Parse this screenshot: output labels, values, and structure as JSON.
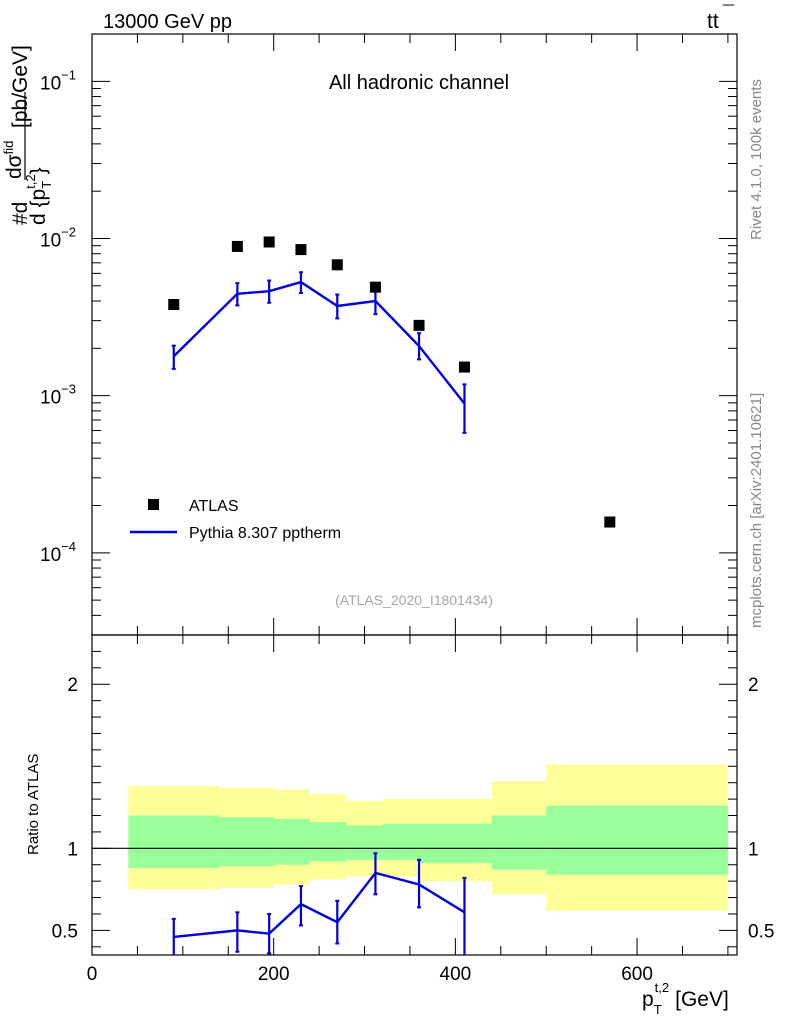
{
  "header": {
    "energy_label": "13000 GeV pp",
    "process_main": "tt",
    "process_bar": "¯"
  },
  "side_labels": {
    "rivet": "Rivet 4.1.0,  100k events",
    "source": "mcplots.cern.ch [arXiv:2401.10621]"
  },
  "chart_data": [
    {
      "type": "scatter",
      "title": "All hadronic channel",
      "watermark": "(ATLAS_2020_I1801434)",
      "ylabel": {
        "prefix": "#d",
        "num_main": "dσ",
        "num_sup": "fid",
        "den_main": "d {p",
        "den_sub": "T",
        "den_sup": "t,2",
        "den_close": "}",
        "unit": "[pb/GeV]"
      },
      "yscale": "log",
      "xlim": [
        0,
        710
      ],
      "ylim": [
        3e-05,
        0.2
      ],
      "y_ticks": [
        {
          "value": 0.1,
          "base": "10",
          "exp": "−1"
        },
        {
          "value": 0.01,
          "base": "10",
          "exp": "−2"
        },
        {
          "value": 0.001,
          "base": "10",
          "exp": "−3"
        },
        {
          "value": 0.0001,
          "base": "10",
          "exp": "−4"
        }
      ],
      "legend": {
        "position": "bottom-left",
        "data_label": "ATLAS",
        "mc_label": "Pythia 8.307 pptherm"
      },
      "series": [
        {
          "name": "ATLAS",
          "color": "#000000",
          "x": [
            90,
            160,
            195,
            230,
            270,
            312,
            360,
            410,
            570
          ],
          "y": [
            0.0038,
            0.0089,
            0.0095,
            0.0085,
            0.0068,
            0.0049,
            0.0028,
            0.00152,
            0.000157
          ]
        },
        {
          "name": "Pythia 8.307 pptherm",
          "color": "#0000dd",
          "x": [
            90,
            160,
            195,
            230,
            270,
            312,
            360,
            410
          ],
          "y": [
            0.00178,
            0.00445,
            0.00462,
            0.00528,
            0.00372,
            0.004,
            0.00207,
            0.00089
          ],
          "y_low": [
            0.00148,
            0.00375,
            0.0039,
            0.0045,
            0.0031,
            0.0033,
            0.0017,
            0.00058
          ],
          "y_high": [
            0.00208,
            0.0052,
            0.0054,
            0.0061,
            0.0044,
            0.0047,
            0.0025,
            0.00118
          ]
        }
      ]
    },
    {
      "type": "line",
      "ylabel": "Ratio to ATLAS",
      "xlabel": {
        "main": "p",
        "sub": "T",
        "sup": "t,2",
        "unit": "[GeV]"
      },
      "xlim": [
        0,
        710
      ],
      "ylim": [
        0.35,
        2.3
      ],
      "x_ticks": [
        0,
        200,
        400,
        600
      ],
      "y_ticks_left": [
        "2",
        "1",
        "0.5"
      ],
      "y_ticks_right": [
        "2",
        "1",
        "0.5"
      ],
      "y_tick_values": [
        2,
        1,
        0.5
      ],
      "reference_line": 1,
      "bands": {
        "edges": [
          40,
          140,
          200,
          240,
          280,
          320,
          360,
          440,
          500,
          700
        ],
        "yellow_low": [
          0.75,
          0.76,
          0.78,
          0.81,
          0.83,
          0.83,
          0.8,
          0.72,
          0.62
        ],
        "yellow_high": [
          1.38,
          1.37,
          1.36,
          1.33,
          1.29,
          1.3,
          1.3,
          1.41,
          1.51
        ],
        "green_low": [
          0.88,
          0.89,
          0.9,
          0.92,
          0.93,
          0.93,
          0.91,
          0.87,
          0.84
        ],
        "green_high": [
          1.2,
          1.19,
          1.18,
          1.16,
          1.14,
          1.15,
          1.15,
          1.2,
          1.26
        ],
        "yellow_color": "#ffff99",
        "green_color": "#99ff99"
      },
      "series": [
        {
          "name": "Pythia 8.307 pptherm / ATLAS",
          "color": "#0000dd",
          "x": [
            90,
            160,
            195,
            230,
            270,
            312,
            360,
            410
          ],
          "y": [
            0.46,
            0.5,
            0.48,
            0.66,
            0.55,
            0.85,
            0.78,
            0.61
          ],
          "y_low": [
            0.3,
            0.37,
            0.36,
            0.53,
            0.42,
            0.72,
            0.64,
            0.3
          ],
          "y_high": [
            0.57,
            0.61,
            0.6,
            0.77,
            0.68,
            0.97,
            0.93,
            0.82
          ]
        }
      ]
    }
  ]
}
